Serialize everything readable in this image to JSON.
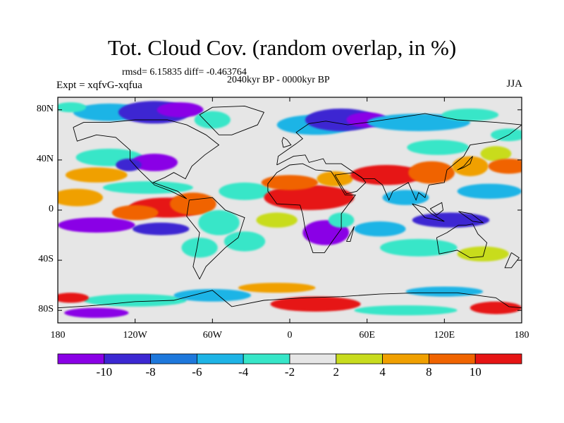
{
  "title": "Tot. Cloud Cov. (random overlap, in %)",
  "stats": "rmsd= 6.15835 diff= -0.463764",
  "period": "2040kyr BP - 0000kyr BP",
  "experiment": "Expt = xqfvG-xqfua",
  "season": "JJA",
  "lat_ticks": [
    "80N",
    "40N",
    "0",
    "40S",
    "80S"
  ],
  "lat_values": [
    80,
    40,
    0,
    -40,
    -80
  ],
  "lon_ticks": [
    "180",
    "120W",
    "60W",
    "0",
    "60E",
    "120E",
    "180"
  ],
  "lon_values": [
    -180,
    -120,
    -60,
    0,
    60,
    120,
    180
  ],
  "colorbar": {
    "labels": [
      "-10",
      "-8",
      "-6",
      "-4",
      "-2",
      "2",
      "4",
      "8",
      "10"
    ],
    "colors": [
      "#8a00e6",
      "#3c28d2",
      "#1e78dc",
      "#1eb4e6",
      "#37e6c8",
      "#e6e6e6",
      "#c8dc1e",
      "#f0a000",
      "#f06400",
      "#e61414"
    ]
  },
  "map_colors": {
    "neutral": "#e6e6e6",
    "strong_decrease": "#8a00e6",
    "decrease": "#3c28d2",
    "moderate_decrease": "#1e78dc",
    "slight_decrease": "#1eb4e6",
    "weak_decrease": "#37e6c8",
    "weak_increase": "#c8dc1e",
    "increase": "#f0a000",
    "strong_increase": "#f06400",
    "max_increase": "#e61414"
  }
}
